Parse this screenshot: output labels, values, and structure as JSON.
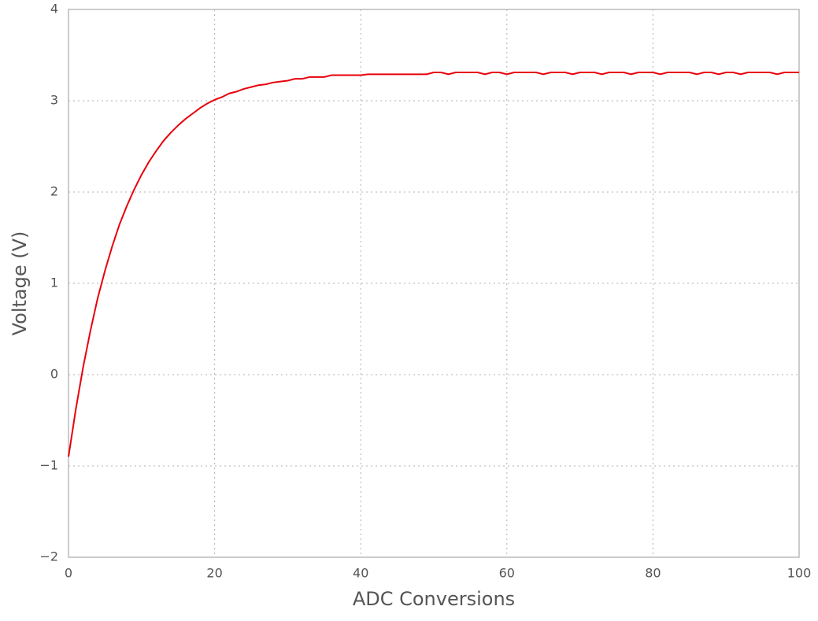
{
  "chart_data": {
    "type": "line",
    "x_label": "ADC Conversions",
    "y_label": "Voltage (V)",
    "x": [
      0,
      1,
      2,
      3,
      4,
      5,
      6,
      7,
      8,
      9,
      10,
      11,
      12,
      13,
      14,
      15,
      16,
      17,
      18,
      19,
      20,
      21,
      22,
      23,
      24,
      25,
      26,
      27,
      28,
      29,
      30,
      31,
      32,
      33,
      34,
      35,
      36,
      37,
      38,
      39,
      40,
      41,
      42,
      43,
      44,
      45,
      46,
      47,
      48,
      49,
      50,
      51,
      52,
      53,
      54,
      55,
      56,
      57,
      58,
      59,
      60,
      61,
      62,
      63,
      64,
      65,
      66,
      67,
      68,
      69,
      70,
      71,
      72,
      73,
      74,
      75,
      76,
      77,
      78,
      79,
      80,
      81,
      82,
      83,
      84,
      85,
      86,
      87,
      88,
      89,
      90,
      91,
      92,
      93,
      94,
      95,
      96,
      97,
      98,
      99,
      100
    ],
    "values": [
      -0.9,
      -0.38,
      0.08,
      0.48,
      0.84,
      1.14,
      1.41,
      1.65,
      1.85,
      2.03,
      2.19,
      2.33,
      2.45,
      2.56,
      2.65,
      2.73,
      2.8,
      2.86,
      2.92,
      2.97,
      3.01,
      3.04,
      3.08,
      3.1,
      3.13,
      3.15,
      3.17,
      3.18,
      3.2,
      3.21,
      3.22,
      3.24,
      3.24,
      3.26,
      3.26,
      3.26,
      3.28,
      3.28,
      3.28,
      3.28,
      3.28,
      3.29,
      3.29,
      3.29,
      3.29,
      3.29,
      3.29,
      3.29,
      3.29,
      3.29,
      3.31,
      3.31,
      3.29,
      3.31,
      3.31,
      3.31,
      3.31,
      3.29,
      3.31,
      3.31,
      3.29,
      3.31,
      3.31,
      3.31,
      3.31,
      3.29,
      3.31,
      3.31,
      3.31,
      3.29,
      3.31,
      3.31,
      3.31,
      3.29,
      3.31,
      3.31,
      3.31,
      3.29,
      3.31,
      3.31,
      3.31,
      3.29,
      3.31,
      3.31,
      3.31,
      3.31,
      3.29,
      3.31,
      3.31,
      3.29,
      3.31,
      3.31,
      3.29,
      3.31,
      3.31,
      3.31,
      3.31,
      3.29,
      3.31,
      3.31,
      3.31
    ],
    "color": "#e8000b",
    "xlim": [
      0,
      100
    ],
    "xticks": [
      0,
      20,
      40,
      60,
      80,
      100
    ],
    "ylim": [
      -2,
      4
    ],
    "yticks": [
      {
        "value": -2,
        "label": "−2"
      },
      {
        "value": -1,
        "label": "−1"
      },
      0,
      1,
      2,
      3,
      4
    ],
    "grid": true
  }
}
